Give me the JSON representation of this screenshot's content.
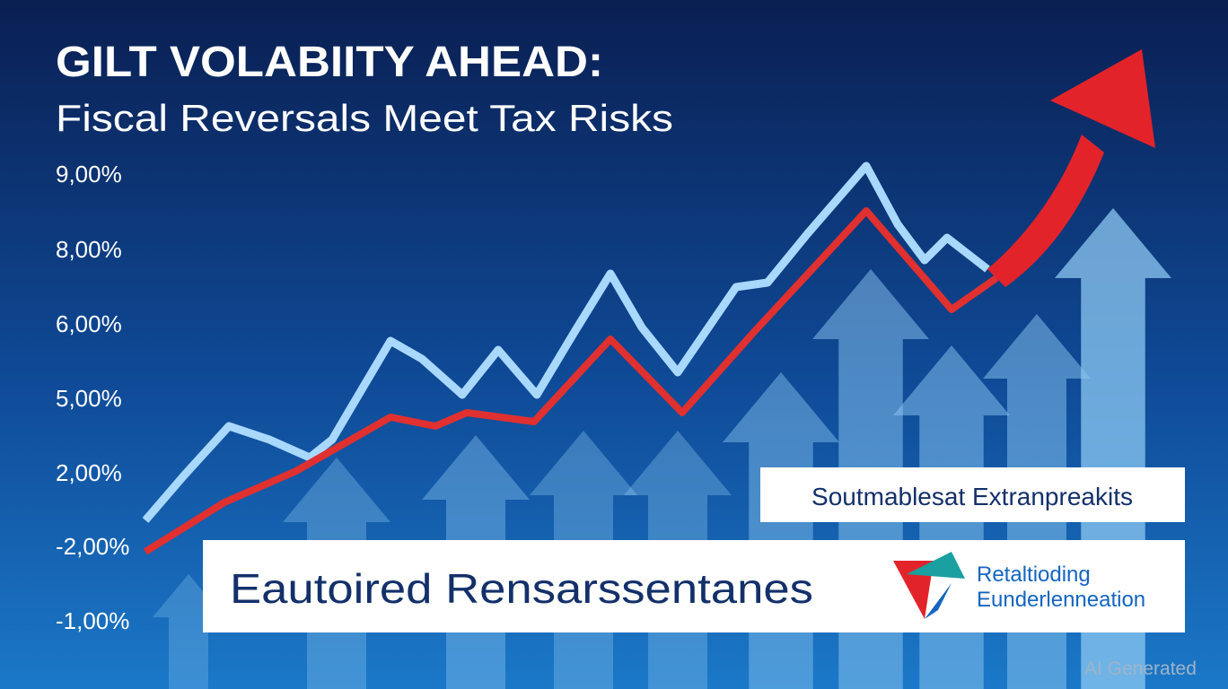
{
  "header": {
    "title": "GILT VOLABIITY AHEAD:",
    "subtitle": "Fiscal Reversals Meet Tax Risks"
  },
  "axis_labels": [
    "9,00%",
    "8,00%",
    "6,00%",
    "5,00%",
    "2,00%",
    "-2,00%",
    "-1,00%"
  ],
  "callout": "Soutmablesat Extranpreakits",
  "banner": {
    "text": "Eautoired Rensarssentanes",
    "logo_lines": [
      "Retaltioding",
      "Eunderlenneation"
    ]
  },
  "watermark": "AI Generated"
}
